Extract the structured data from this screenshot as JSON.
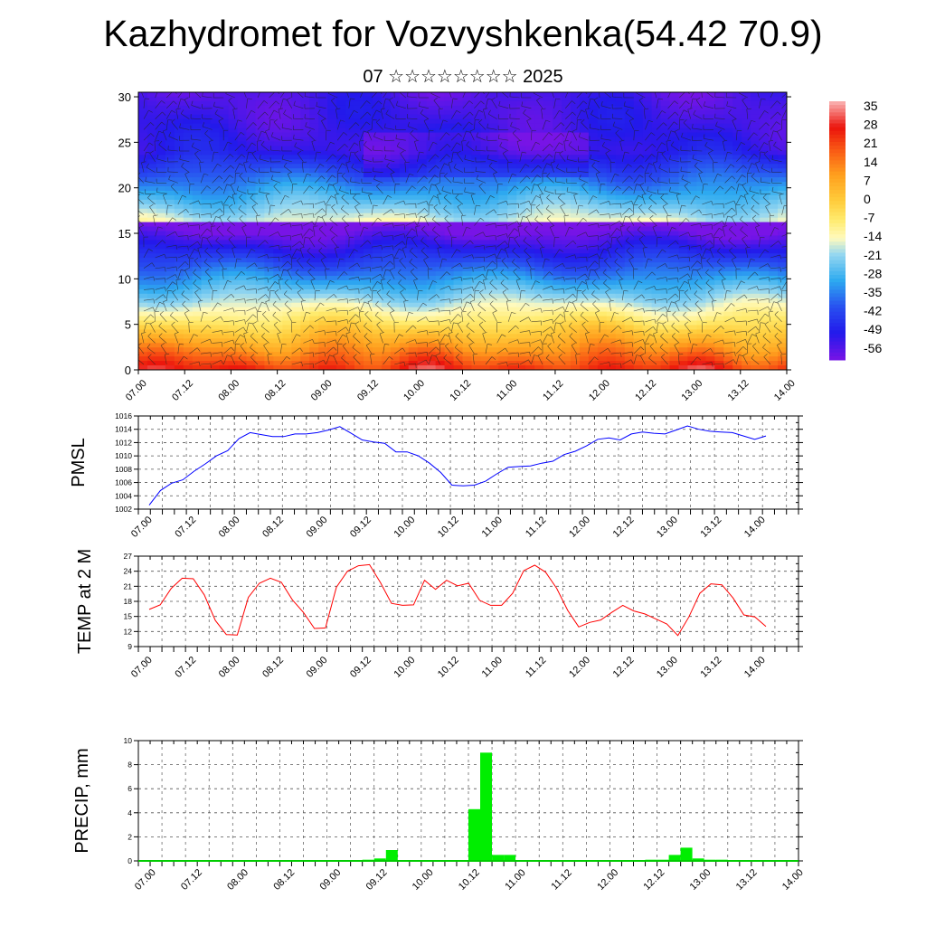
{
  "page": {
    "title": "Kazhydromet for Vozvyshkenka(54.42 70.9)",
    "subtitle": "07 ☆☆☆☆☆☆☆☆ 2025"
  },
  "chart_data": [
    {
      "type": "heatmap",
      "title": "",
      "xlabel": "",
      "ylabel": "",
      "x_ticks": [
        "07.00",
        "07.12",
        "08.00",
        "08.12",
        "09.00",
        "09.12",
        "10.00",
        "10.12",
        "11.00",
        "11.12",
        "12.00",
        "12.12",
        "13.00",
        "13.12",
        "14.00"
      ],
      "y_ticks": [
        0,
        5,
        10,
        15,
        20,
        25,
        30
      ],
      "ylim": [
        0,
        30.5
      ],
      "colorbar_labels": [
        "35",
        "28",
        "21",
        "14",
        "7",
        "0",
        "-7",
        "-14",
        "-21",
        "-28",
        "-35",
        "-42",
        "-49",
        "-56"
      ],
      "colorbar_range": [
        -60,
        38
      ],
      "overlay": "wind barbs",
      "colors": {
        "warm": "#e8110b",
        "cold": "#2a1fe0",
        "mid": "#fff8a0"
      }
    },
    {
      "type": "line",
      "ylabel": "PMSL",
      "ylim": [
        1002,
        1016
      ],
      "y_ticks": [
        1002,
        1004,
        1006,
        1008,
        1010,
        1012,
        1014,
        1016
      ],
      "x_ticks": [
        "07.00",
        "07.12",
        "08.00",
        "08.12",
        "09.00",
        "09.12",
        "10.00",
        "10.12",
        "11.00",
        "11.12",
        "12.00",
        "12.12",
        "13.00",
        "13.12",
        "14.00"
      ],
      "color": "#0000ff",
      "values": [
        1002.6,
        1004.8,
        1005.9,
        1006.4,
        1007.7,
        1008.8,
        1010.0,
        1010.8,
        1012.6,
        1013.5,
        1013.2,
        1012.9,
        1012.9,
        1013.3,
        1013.3,
        1013.5,
        1013.9,
        1014.4,
        1013.4,
        1012.4,
        1012.1,
        1011.9,
        1010.6,
        1010.6,
        1010.0,
        1008.9,
        1007.5,
        1005.6,
        1005.5,
        1005.6,
        1006.2,
        1007.3,
        1008.3,
        1008.4,
        1008.5,
        1008.9,
        1009.2,
        1010.2,
        1010.7,
        1011.5,
        1012.5,
        1012.7,
        1012.4,
        1013.3,
        1013.6,
        1013.4,
        1013.3,
        1013.9,
        1014.5,
        1014.0,
        1013.7,
        1013.6,
        1013.5,
        1013.0,
        1012.5,
        1013.0
      ]
    },
    {
      "type": "line",
      "ylabel": "TEMP at 2 M",
      "ylim": [
        9,
        27
      ],
      "y_ticks": [
        9,
        12,
        15,
        18,
        21,
        24,
        27
      ],
      "x_ticks": [
        "07.00",
        "07.12",
        "08.00",
        "08.12",
        "09.00",
        "09.12",
        "10.00",
        "10.12",
        "11.00",
        "11.12",
        "12.00",
        "12.12",
        "13.00",
        "13.12",
        "14.00"
      ],
      "color": "#ff0000",
      "values": [
        16.4,
        17.3,
        20.6,
        22.6,
        22.5,
        19.3,
        14.2,
        11.4,
        11.3,
        18.8,
        21.6,
        22.6,
        21.8,
        18.3,
        15.8,
        12.6,
        12.7,
        20.8,
        24.0,
        25.1,
        25.3,
        21.7,
        17.6,
        17.2,
        17.3,
        22.2,
        20.4,
        22.2,
        21.1,
        21.6,
        18.2,
        17.2,
        17.2,
        19.6,
        24.1,
        25.2,
        23.8,
        20.6,
        16.2,
        12.9,
        13.8,
        14.3,
        15.8,
        17.2,
        16.1,
        15.5,
        14.5,
        13.5,
        11.2,
        14.9,
        19.6,
        21.5,
        21.3,
        18.7,
        15.3,
        14.9,
        13.0
      ]
    },
    {
      "type": "bar",
      "ylabel": "PRECIP, mm",
      "ylim": [
        0,
        10
      ],
      "y_ticks": [
        0,
        2,
        4,
        6,
        8,
        10
      ],
      "x_ticks": [
        "07.00",
        "07.12",
        "08.00",
        "08.12",
        "09.00",
        "09.12",
        "10.00",
        "10.12",
        "11.00",
        "11.12",
        "12.00",
        "12.12",
        "13.00",
        "13.12",
        "14.00"
      ],
      "color": "#00ee00",
      "values": [
        0,
        0,
        0,
        0,
        0,
        0,
        0,
        0,
        0,
        0,
        0,
        0,
        0,
        0,
        0,
        0,
        0,
        0,
        0,
        0.1,
        0.2,
        0.9,
        0,
        0,
        0,
        0,
        0,
        0,
        4.3,
        9.0,
        0.5,
        0.5,
        0,
        0,
        0,
        0,
        0,
        0,
        0,
        0,
        0,
        0,
        0,
        0.1,
        0.1,
        0.5,
        1.1,
        0.2,
        0.1,
        0.1,
        0,
        0,
        0,
        0,
        0,
        0
      ]
    }
  ]
}
